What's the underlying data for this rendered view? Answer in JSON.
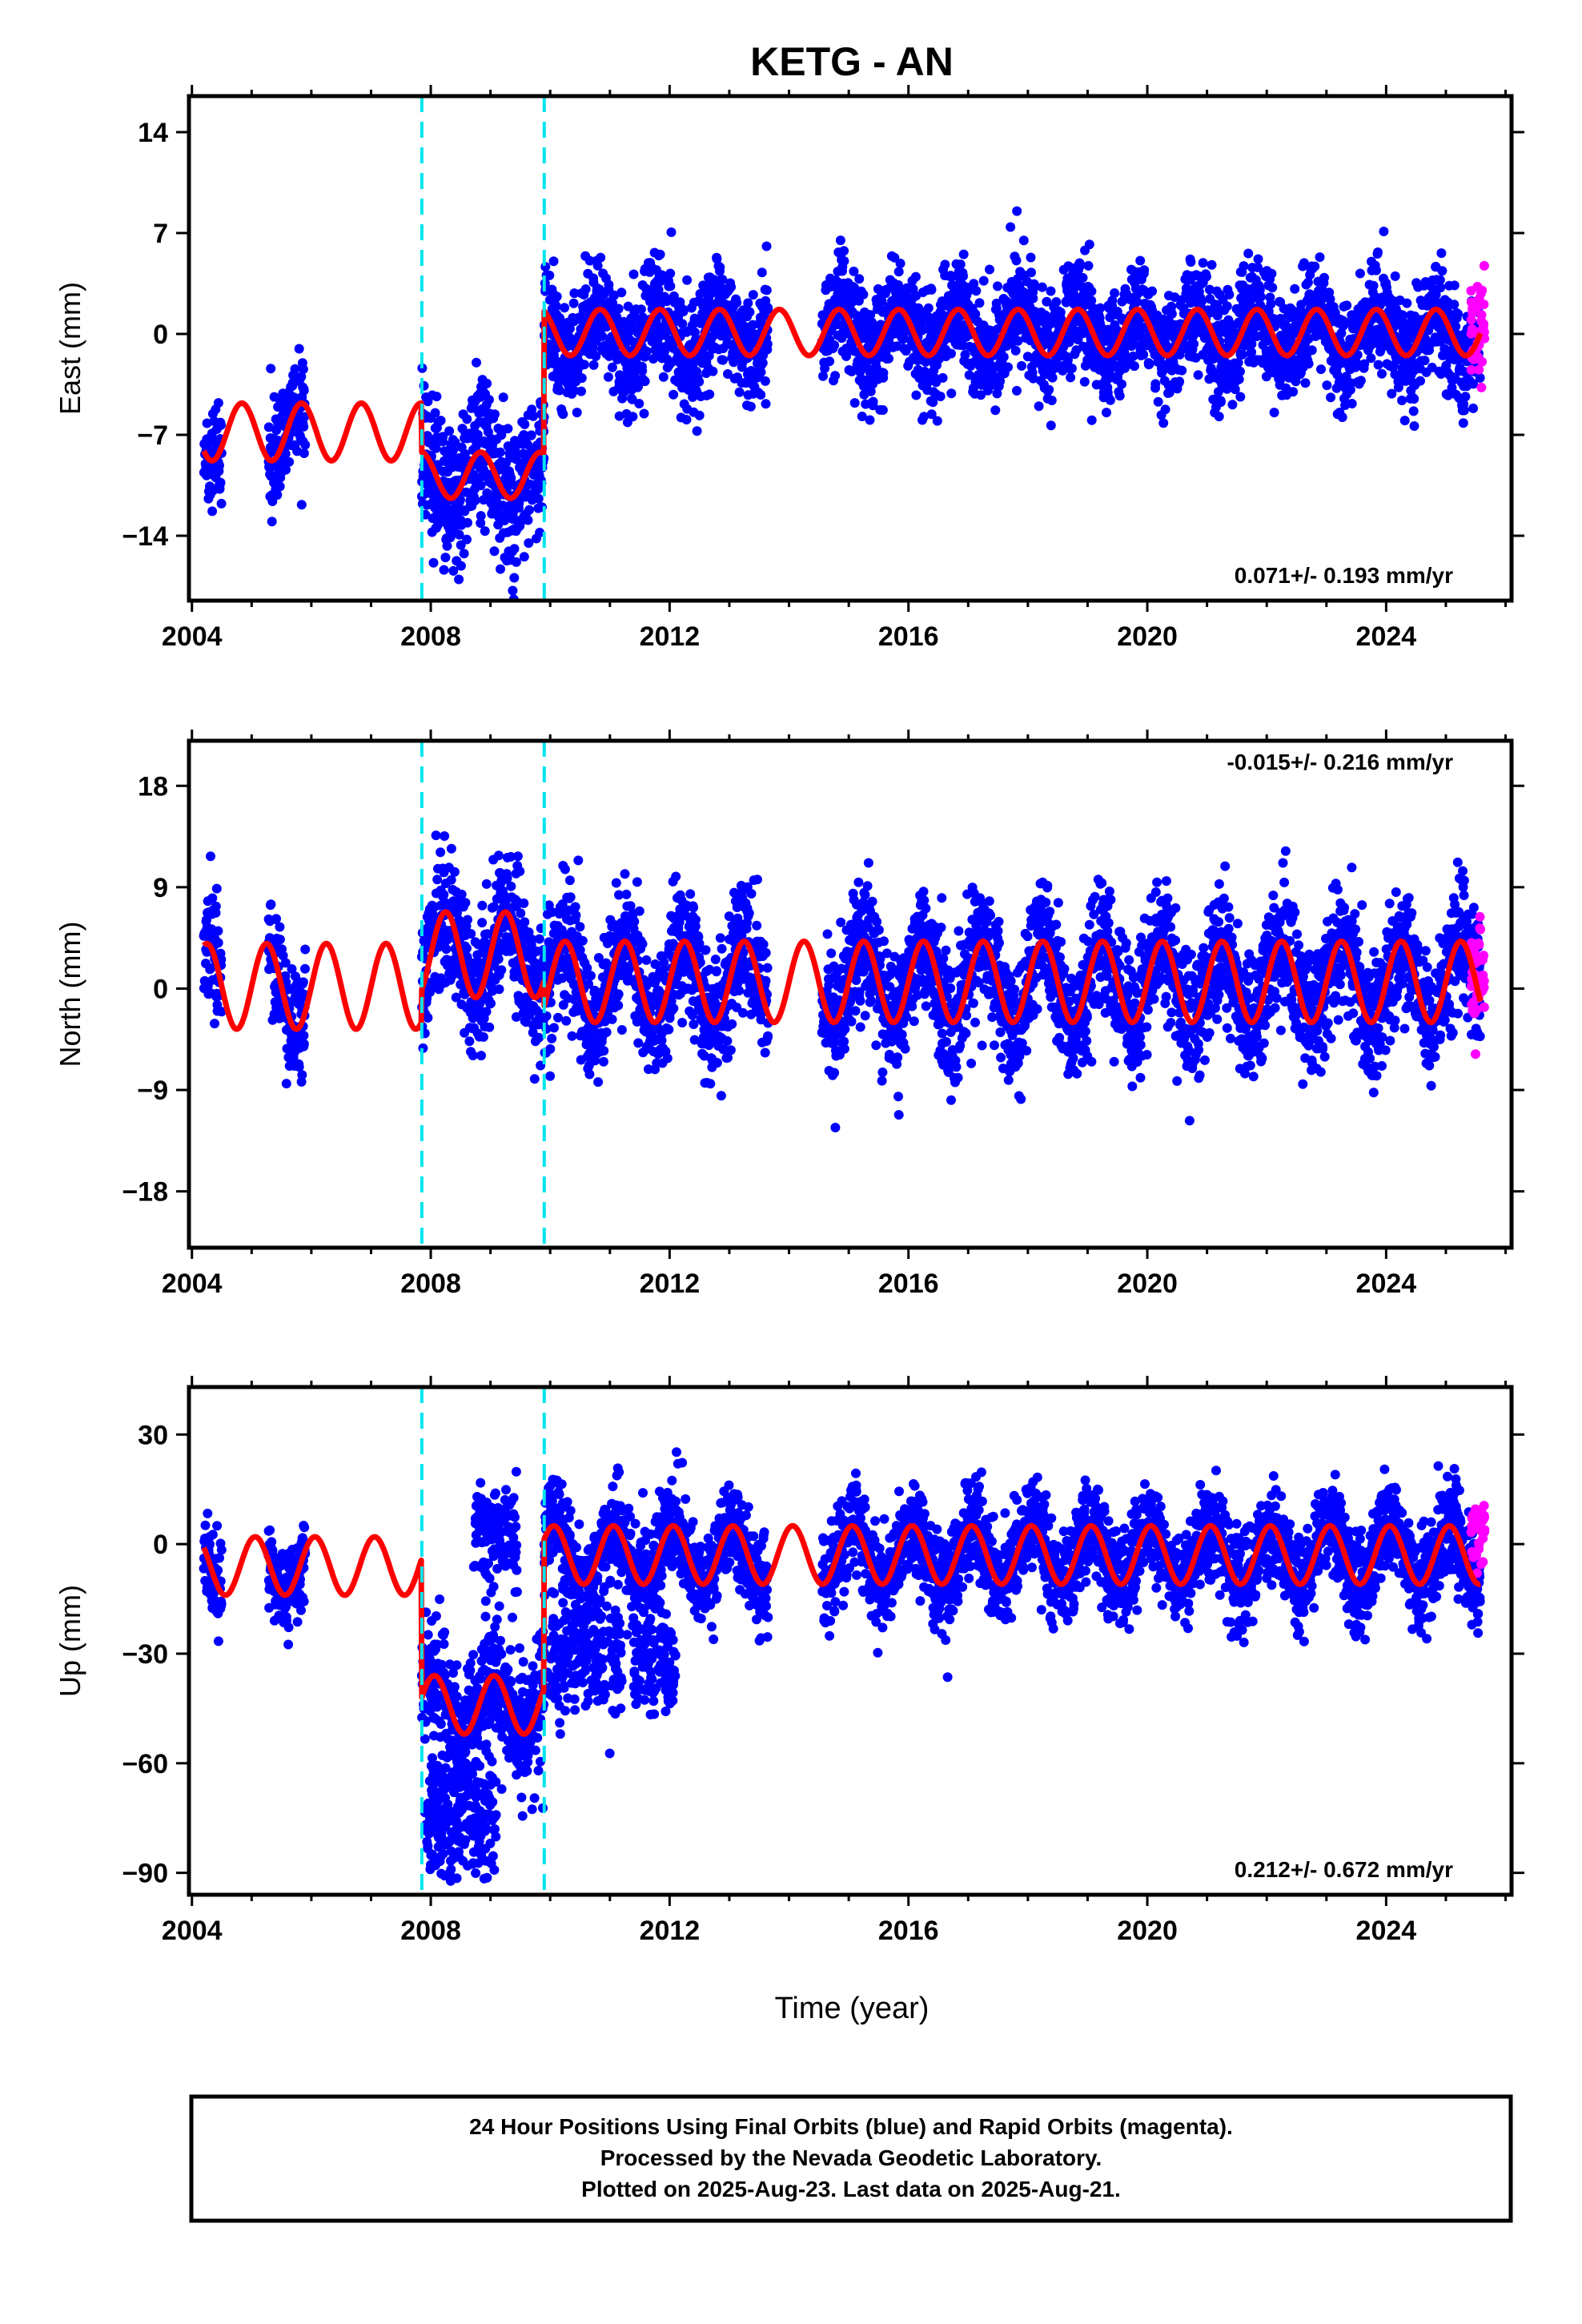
{
  "chart_data": [
    {
      "type": "scatter",
      "title": "KETG - AN",
      "ylabel": "East (mm)",
      "xlabel": "",
      "xlim": [
        2003.95,
        2026.1
      ],
      "ylim": [
        -18.5,
        16.5
      ],
      "x_ticks": [
        2004,
        2008,
        2012,
        2016,
        2020,
        2024
      ],
      "y_ticks": [
        14,
        7,
        0,
        -7,
        -14
      ],
      "y_tick_labels": [
        "14",
        "7",
        "0",
        "−7",
        "−14"
      ],
      "rate_label": "0.071+/- 0.193 mm/yr",
      "rate_position": "bottom-right",
      "breaks": [
        2007.85,
        2009.9
      ],
      "segments": [
        {
          "start": 2004.2,
          "end": 2007.85,
          "offset": -6.8,
          "amp": 2.0,
          "phase": 2.6,
          "sd": 1.8,
          "gaps": [
            [
              2004.5,
              2005.28
            ],
            [
              2005.9,
              2007.85
            ]
          ]
        },
        {
          "start": 2007.85,
          "end": 2009.9,
          "offset": -9.8,
          "amp": 1.6,
          "phase": 2.6,
          "sd": 2.4,
          "gaps": []
        },
        {
          "start": 2009.9,
          "end": 2025.58,
          "offset": 0.1,
          "amp": 1.6,
          "phase": 2.6,
          "sd": 1.9,
          "gaps": [
            [
              2013.65,
              2014.55
            ]
          ]
        }
      ],
      "magenta": {
        "start": 2025.42,
        "end": 2025.65,
        "center": 1.0,
        "sd": 1.8
      },
      "grid": false,
      "legend": "none"
    },
    {
      "type": "scatter",
      "title": "",
      "ylabel": "North (mm)",
      "xlabel": "",
      "xlim": [
        2003.95,
        2026.1
      ],
      "ylim": [
        -23,
        22
      ],
      "x_ticks": [
        2004,
        2008,
        2012,
        2016,
        2020,
        2024
      ],
      "y_ticks": [
        18,
        9,
        0,
        -9,
        -18
      ],
      "y_tick_labels": [
        "18",
        "9",
        "0",
        "−9",
        "−18"
      ],
      "rate_label": "-0.015+/- 0.216 mm/yr",
      "rate_position": "top-right",
      "breaks": [
        2007.85,
        2009.9
      ],
      "segments": [
        {
          "start": 2004.2,
          "end": 2007.85,
          "offset": 0.2,
          "amp": 3.8,
          "phase": 0.0,
          "sd": 2.6,
          "gaps": [
            [
              2004.5,
              2005.28
            ],
            [
              2005.9,
              2007.85
            ]
          ]
        },
        {
          "start": 2007.85,
          "end": 2009.9,
          "offset": 3.0,
          "amp": 3.8,
          "phase": 0.0,
          "sd": 3.0,
          "gaps": []
        },
        {
          "start": 2009.9,
          "end": 2025.58,
          "offset": 0.6,
          "amp": 3.6,
          "phase": 0.0,
          "sd": 2.8,
          "gaps": [
            [
              2013.65,
              2014.55
            ]
          ]
        }
      ],
      "magenta": {
        "start": 2025.42,
        "end": 2025.65,
        "center": 0.5,
        "sd": 2.2
      },
      "grid": false,
      "legend": "none"
    },
    {
      "type": "scatter",
      "title": "",
      "ylabel": "Up (mm)",
      "xlabel": "Time (year)",
      "xlim": [
        2003.95,
        2026.1
      ],
      "ylim": [
        -96,
        43
      ],
      "x_ticks": [
        2004,
        2008,
        2012,
        2016,
        2020,
        2024
      ],
      "y_ticks": [
        30,
        0,
        -30,
        -60,
        -90
      ],
      "y_tick_labels": [
        "30",
        "0",
        "−30",
        "−60",
        "−90"
      ],
      "rate_label": "0.212+/- 0.672 mm/yr",
      "rate_position": "bottom-right",
      "breaks": [
        2007.85,
        2009.9
      ],
      "segments": [
        {
          "start": 2004.2,
          "end": 2007.85,
          "offset": -6.0,
          "amp": 8.0,
          "phase": 1.2,
          "sd": 5.5,
          "gaps": [
            [
              2004.5,
              2005.28
            ],
            [
              2005.9,
              2007.85
            ]
          ]
        },
        {
          "start": 2007.85,
          "end": 2009.9,
          "offset": -44.0,
          "amp": 8.0,
          "phase": 1.2,
          "sd": 8.0,
          "gaps": []
        },
        {
          "start": 2009.9,
          "end": 2025.58,
          "offset": -3.0,
          "amp": 8.0,
          "phase": 1.2,
          "sd": 6.5,
          "gaps": [
            [
              2013.65,
              2014.55
            ]
          ]
        }
      ],
      "clusters": [
        {
          "start": 2007.9,
          "end": 2009.1,
          "center": -74,
          "sd": 8,
          "count": 240
        },
        {
          "start": 2008.7,
          "end": 2009.45,
          "center": 3,
          "sd": 8,
          "count": 120
        },
        {
          "start": 2009.95,
          "end": 2011.2,
          "center": -30,
          "sd": 8,
          "count": 220
        },
        {
          "start": 2011.4,
          "end": 2012.1,
          "center": -33,
          "sd": 7,
          "count": 120
        }
      ],
      "magenta": {
        "start": 2025.42,
        "end": 2025.65,
        "center": 3.0,
        "sd": 5.0
      },
      "grid": false,
      "legend": "none"
    }
  ],
  "footer": {
    "line1": "24 Hour Positions Using Final Orbits (blue) and Rapid Orbits (magenta).",
    "line2": "Processed by the Nevada Geodetic Laboratory.",
    "line3": "Plotted on 2025-Aug-23. Last data on 2025-Aug-21."
  },
  "colors": {
    "final_orbits": "#0000ff",
    "rapid_orbits": "#ff00ff",
    "model_fit": "#ff0000",
    "equipment_change": "#00e5ee",
    "frame": "#000000"
  }
}
